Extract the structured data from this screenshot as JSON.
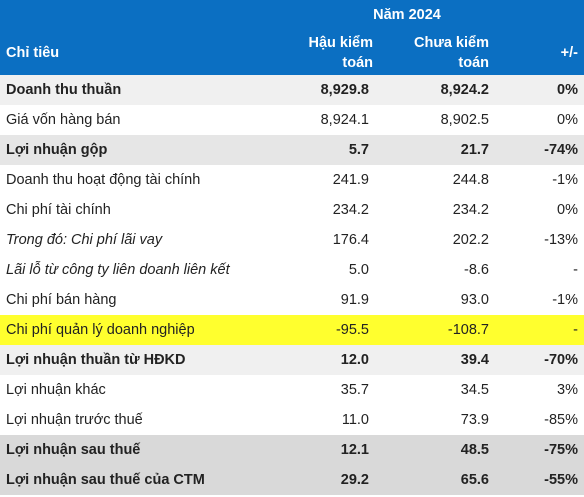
{
  "header": {
    "year": "Năm 2024",
    "columns": [
      "Chỉ tiêu",
      "Hậu kiểm toán",
      "Chưa kiểm toán",
      "+/-"
    ]
  },
  "table": {
    "rows": [
      [
        "Doanh thu thuần",
        "8,929.8",
        "8,924.2",
        "0%"
      ],
      [
        "Giá vốn hàng bán",
        "8,924.1",
        "8,902.5",
        "0%"
      ],
      [
        "Lợi nhuận gộp",
        "5.7",
        "21.7",
        "-74%"
      ],
      [
        "Doanh thu hoạt động tài chính",
        "241.9",
        "244.8",
        "-1%"
      ],
      [
        "Chi phí tài chính",
        "234.2",
        "234.2",
        "0%"
      ],
      [
        "Trong đó: Chi phí lãi vay",
        "176.4",
        "202.2",
        "-13%"
      ],
      [
        "Lãi lỗ từ công ty liên doanh liên kết",
        "5.0",
        "-8.6",
        "-"
      ],
      [
        "Chi phí bán hàng",
        "91.9",
        "93.0",
        "-1%"
      ],
      [
        "Chi phí quản lý doanh nghiệp",
        "-95.5",
        "-108.7",
        "-"
      ],
      [
        "Lợi nhuận thuần từ HĐKD",
        "12.0",
        "39.4",
        "-70%"
      ],
      [
        "Lợi nhuận khác",
        "35.7",
        "34.5",
        "3%"
      ],
      [
        "Lợi nhuận trước thuế",
        "11.0",
        "73.9",
        "-85%"
      ],
      [
        "Lợi nhuận sau thuế",
        "12.1",
        "48.5",
        "-75%"
      ],
      [
        "Lợi nhuận sau thuế của CTM",
        "29.2",
        "65.6",
        "-55%"
      ]
    ]
  }
}
